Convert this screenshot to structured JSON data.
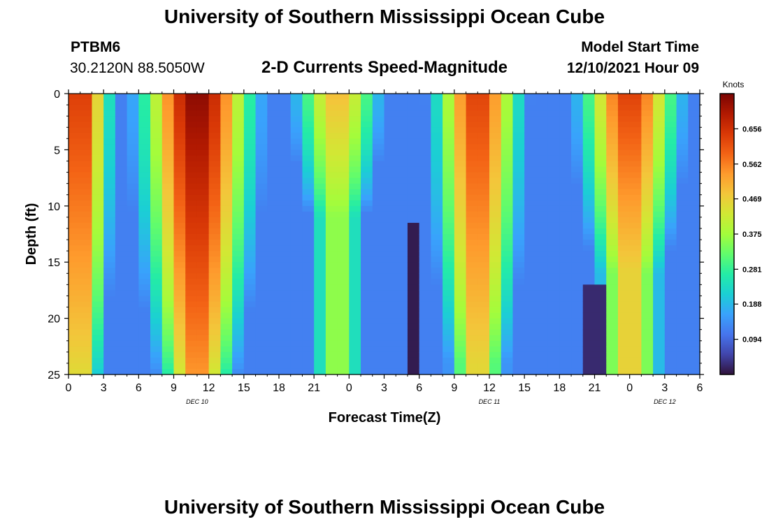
{
  "header": {
    "title": "University of Southern Mississippi Ocean Cube",
    "station_id": "PTBM6",
    "station_coords": "30.2120N  88.5050W",
    "subtitle": "2-D Currents Speed-Magnitude",
    "model_start_label": "Model Start Time",
    "model_start_value": "12/10/2021 Hour 09"
  },
  "footer": {
    "title": "University of Southern Mississippi Ocean Cube"
  },
  "chart_data": {
    "type": "heatmap",
    "title": "2-D Currents Speed-Magnitude",
    "xlabel": "Forecast Time(Z)",
    "ylabel": "Depth (ft)",
    "x_range_hours": [
      0,
      54
    ],
    "y_range_ft": [
      0,
      25
    ],
    "y_ticks": [
      "0",
      "5",
      "10",
      "15",
      "20",
      "25"
    ],
    "x_ticks": [
      "0",
      "3",
      "6",
      "9",
      "12",
      "15",
      "18",
      "21",
      "0",
      "3",
      "6",
      "9",
      "12",
      "15",
      "18",
      "21",
      "0",
      "3",
      "6"
    ],
    "date_labels": [
      {
        "label": "DEC 10",
        "hour": 11
      },
      {
        "label": "DEC 11",
        "hour": 36
      },
      {
        "label": "DEC 12",
        "hour": 51
      }
    ],
    "colorbar": {
      "unit": "Knots",
      "min": 0.0,
      "max": 0.75,
      "ticks": [
        "0.656",
        "0.562",
        "0.469",
        "0.375",
        "0.281",
        "0.188",
        "0.094"
      ],
      "tick_values": [
        0.656,
        0.562,
        0.469,
        0.375,
        0.281,
        0.188,
        0.094
      ]
    },
    "colormap": [
      "#30123b",
      "#4145ab",
      "#4675ed",
      "#39a2fc",
      "#1bcfd4",
      "#24eca6",
      "#61fc6c",
      "#a4fc3b",
      "#d1e834",
      "#f3c63a",
      "#fe9b2d",
      "#f36315",
      "#d93806",
      "#b11901",
      "#7a0403"
    ],
    "x_resolution_hours": 1,
    "y_resolution_ft": 0.5,
    "speed_features": [
      {
        "kind": "surface-peak",
        "center_hour": 1,
        "peak_knots": 0.66,
        "half_width_hours": 2.5,
        "depth_extent_ft": 25
      },
      {
        "kind": "surface-peak",
        "center_hour": 11,
        "peak_knots": 0.74,
        "half_width_hours": 4.5,
        "depth_extent_ft": 25
      },
      {
        "kind": "surface-peak",
        "center_hour": 23,
        "peak_knots": 0.5,
        "half_width_hours": 3.5,
        "depth_extent_ft": 11
      },
      {
        "kind": "surface-peak",
        "center_hour": 35,
        "peak_knots": 0.64,
        "half_width_hours": 3.5,
        "depth_extent_ft": 24
      },
      {
        "kind": "surface-peak",
        "center_hour": 48,
        "peak_knots": 0.64,
        "half_width_hours": 4,
        "depth_extent_ft": 16
      },
      {
        "kind": "minimum",
        "center_hour": 29.5,
        "depth_from_ft": 11.5,
        "min_knots": 0.01
      },
      {
        "kind": "minimum",
        "center_hour": 45,
        "depth_from_ft": 17,
        "min_knots": 0.01
      }
    ],
    "background_knots": 0.12
  }
}
